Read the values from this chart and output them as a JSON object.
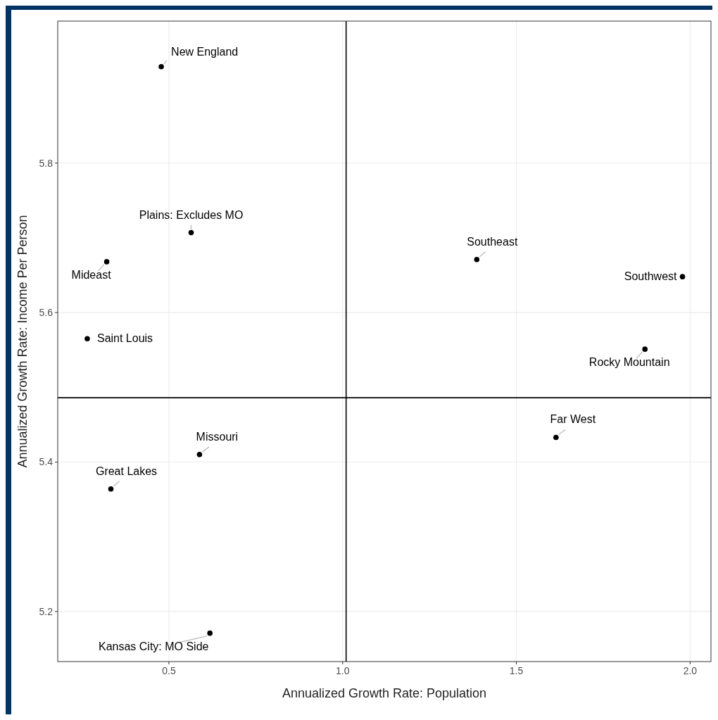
{
  "chart_data": {
    "type": "scatter",
    "xlabel": "Annualized Growth Rate: Population",
    "ylabel": "Annualized Growth Rate: Income Per Person",
    "x": [
      0.478,
      0.564,
      0.321,
      0.265,
      1.386,
      1.978,
      1.87,
      1.614,
      0.588,
      0.333,
      0.618
    ],
    "series": [
      {
        "color": "#000000",
        "values": [
          5.929,
          5.707,
          5.668,
          5.565,
          5.671,
          5.648,
          5.551,
          5.433,
          5.41,
          5.364,
          5.171
        ]
      }
    ],
    "xlim": [
      0.18,
      2.06
    ],
    "xticks": [
      0.5,
      {
        "value": 1.0,
        "label": "1.0"
      },
      1.5,
      {
        "value": 2.0,
        "label": "2.0"
      }
    ],
    "ylim": [
      5.133,
      5.99
    ],
    "yticks": [
      {
        "value": 5.2,
        "label": "5.2"
      },
      {
        "value": 5.4,
        "label": "5.4"
      },
      {
        "value": 5.6,
        "label": "5.6"
      },
      {
        "value": 5.8,
        "label": "5.8"
      }
    ],
    "grid": true,
    "marker": "circle",
    "ref_lines": [
      {
        "axis": "x",
        "value": 1.01,
        "color": "#000000"
      },
      {
        "axis": "y",
        "value": 5.486,
        "color": "#000000"
      }
    ],
    "annotations": [
      {
        "text": "New England",
        "x": 0.478,
        "y": 5.929
      },
      {
        "text": "Plains: Excludes MO",
        "x": 0.564,
        "y": 5.707
      },
      {
        "text": "Mideast",
        "x": 0.321,
        "y": 5.668
      },
      {
        "text": "Saint Louis",
        "x": 0.265,
        "y": 5.565
      },
      {
        "text": "Southeast",
        "x": 1.386,
        "y": 5.671
      },
      {
        "text": "Southwest",
        "x": 1.978,
        "y": 5.648
      },
      {
        "text": "Rocky Mountain",
        "x": 1.87,
        "y": 5.551
      },
      {
        "text": "Far West",
        "x": 1.614,
        "y": 5.433
      },
      {
        "text": "Missouri",
        "x": 0.588,
        "y": 5.41
      },
      {
        "text": "Great Lakes",
        "x": 0.333,
        "y": 5.364
      },
      {
        "text": "Kansas City: MO Side",
        "x": 0.618,
        "y": 5.171
      }
    ]
  }
}
